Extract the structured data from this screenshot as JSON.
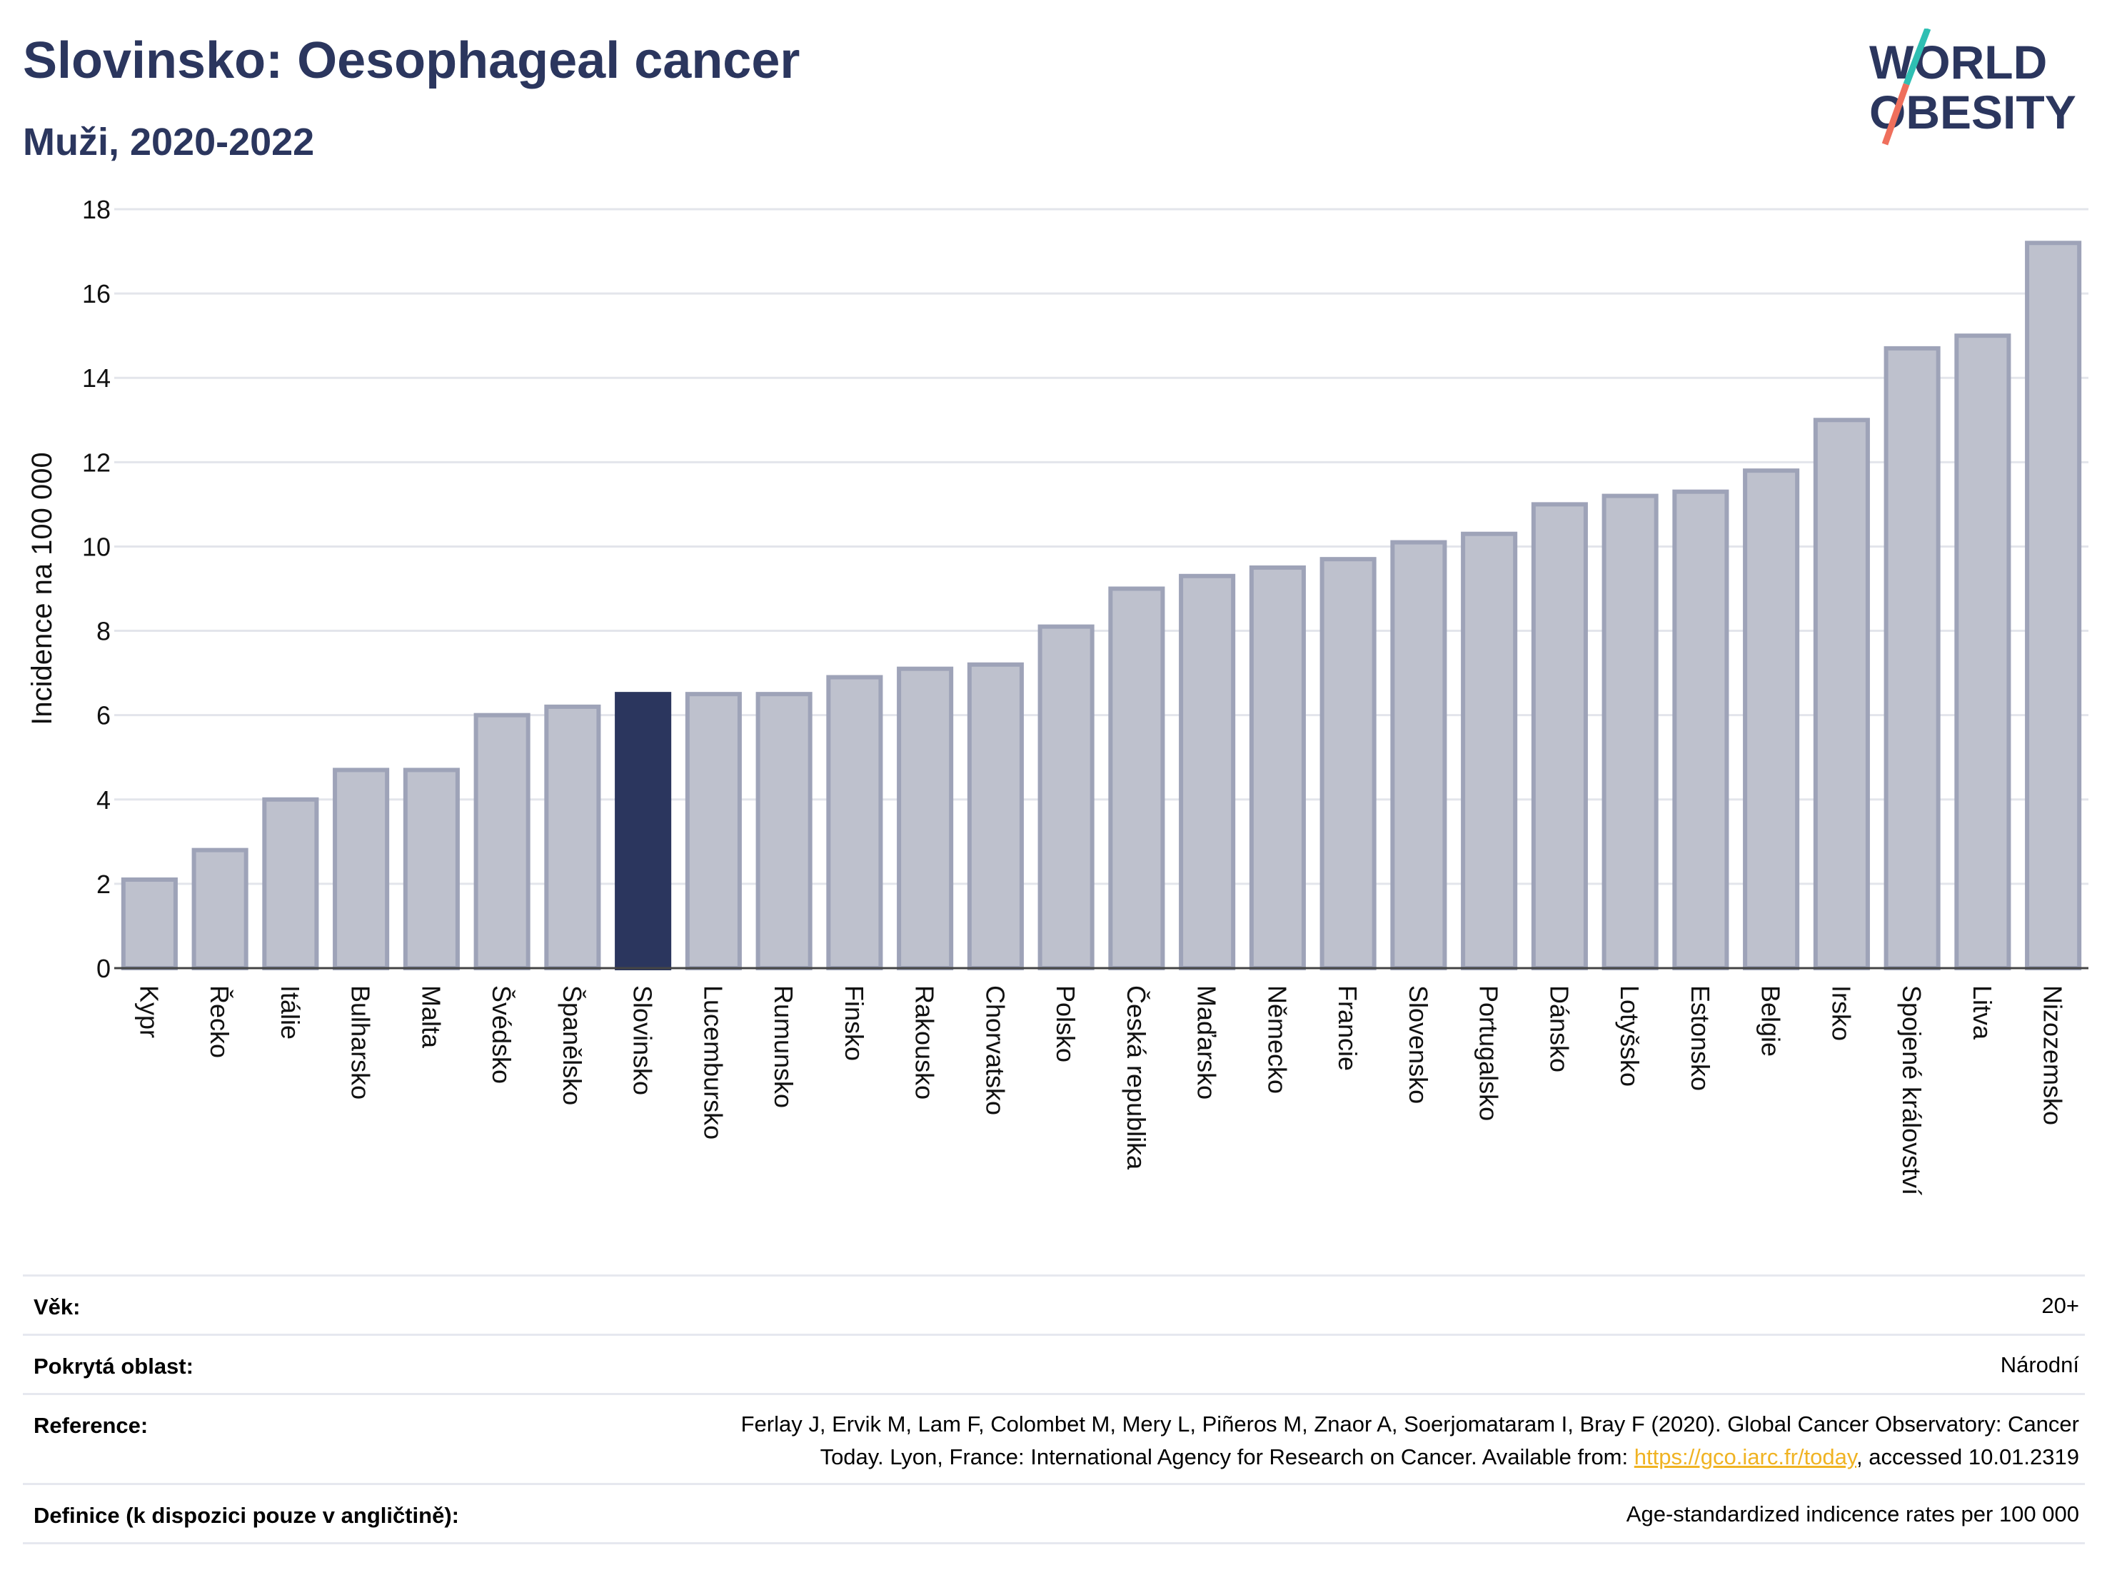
{
  "header": {
    "title": "Slovinsko: Oesophageal cancer",
    "subtitle": "Muži, 2020-2022"
  },
  "logo": {
    "line1": "WORLD",
    "line2": "OBESITY",
    "stroke_colors": [
      "#2fbfb3",
      "#ef6f5c"
    ]
  },
  "colors": {
    "highlight": "#2b365e",
    "bar_fill": "#bec1cd",
    "bar_edge": "#9ea3b8",
    "text": "#2b365e",
    "link": "#f0b323"
  },
  "chart_data": {
    "type": "bar",
    "title": "Slovinsko: Oesophageal cancer",
    "subtitle": "Muži, 2020-2022",
    "ylabel": "Incidence na 100 000",
    "ylim": [
      0,
      18
    ],
    "yticks": [
      0,
      2,
      4,
      6,
      8,
      10,
      12,
      14,
      16,
      18
    ],
    "grid": true,
    "highlight": "Slovinsko",
    "categories": [
      "Kypr",
      "Řecko",
      "Itálie",
      "Bulharsko",
      "Malta",
      "Švédsko",
      "Španělsko",
      "Slovinsko",
      "Lucembursko",
      "Rumunsko",
      "Finsko",
      "Rakousko",
      "Chorvatsko",
      "Polsko",
      "Česká republika",
      "Maďarsko",
      "Německo",
      "Francie",
      "Slovensko",
      "Portugalsko",
      "Dánsko",
      "Lotyšsko",
      "Estonsko",
      "Belgie",
      "Irsko",
      "Spojené království",
      "Litva",
      "Nizozemsko"
    ],
    "values": [
      2.1,
      2.8,
      4.0,
      4.7,
      4.7,
      6.0,
      6.2,
      6.5,
      6.5,
      6.5,
      6.9,
      7.1,
      7.2,
      8.1,
      9.0,
      9.3,
      9.5,
      9.7,
      10.1,
      10.3,
      11.0,
      11.2,
      11.3,
      11.8,
      13.0,
      14.7,
      15.0,
      17.2
    ]
  },
  "info": {
    "age_label": "Věk:",
    "age_value": "20+",
    "area_label": "Pokrytá oblast:",
    "area_value": "Národní",
    "ref_label": "Reference:",
    "ref_line1": "Ferlay J, Ervik M, Lam F, Colombet M, Mery L, Piñeros M, Znaor A, Soerjomataram I, Bray F (2020). Global Cancer Observatory: Cancer",
    "ref_line2_pre": "Today. Lyon, France: International Agency for Research on Cancer. Available from: ",
    "ref_link": "https://gco.iarc.fr/today",
    "ref_line2_post": ", accessed 10.01.2319",
    "def_label": "Definice (k dispozici pouze v angličtině):",
    "def_value": "Age-standardized indicence rates per 100 000"
  }
}
